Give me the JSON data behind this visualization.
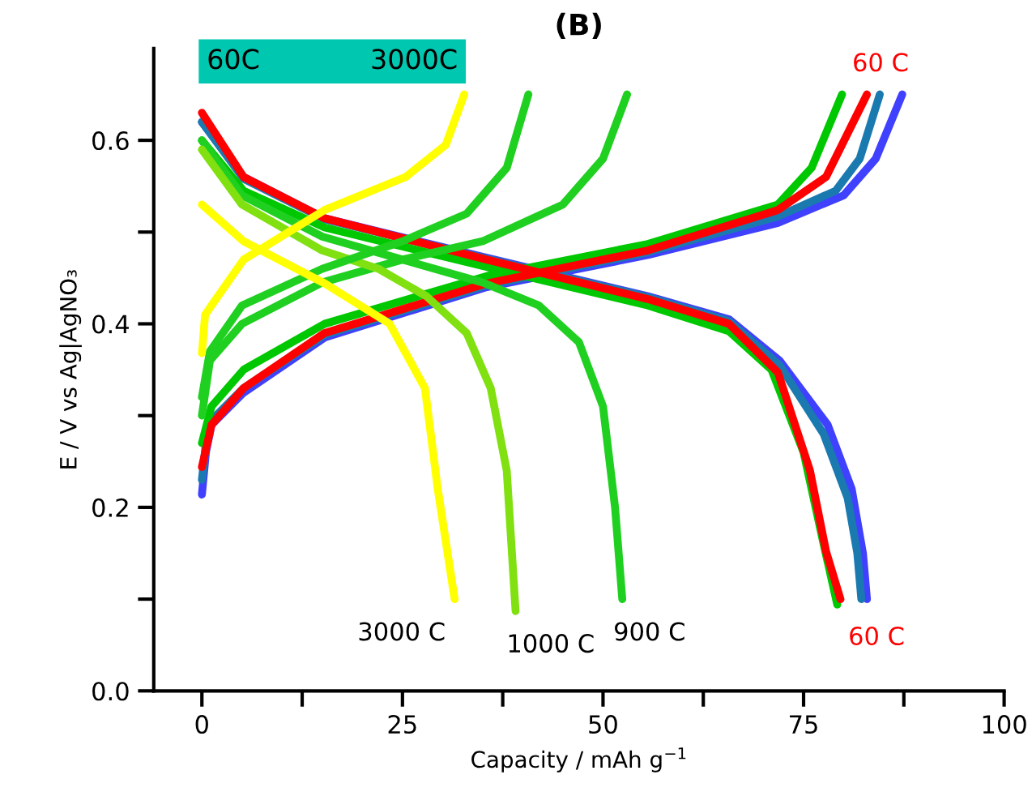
{
  "chart_data": {
    "type": "line",
    "title": "(B)",
    "xlabel": "Capacity / mAh g$^{−1}$",
    "ylabel": "E / V vs Ag|AgNO₃",
    "xlim": [
      -6,
      100
    ],
    "ylim": [
      0,
      0.7
    ],
    "xticks": [
      0,
      {
        "value": 12.5,
        "label": null
      },
      25,
      {
        "value": 37.5,
        "label": null
      },
      50,
      {
        "value": 62.5,
        "label": null
      },
      75,
      {
        "value": 87.5,
        "label": null
      },
      100
    ],
    "yticks": [
      {
        "value": 0.0,
        "label": "0.0"
      },
      {
        "value": 0.1,
        "label": null
      },
      0.2,
      {
        "value": 0.3,
        "label": null
      },
      0.4,
      {
        "value": 0.5,
        "label": null
      },
      0.6
    ],
    "grid": false,
    "legend": false,
    "line_style": "solid",
    "marker": "none",
    "series": [
      {
        "color": "#4040ff",
        "x": [
          0,
          5.2,
          15.3,
          35.5,
          55.6,
          65.7,
          72,
          78,
          81,
          82.4,
          82.9
        ],
        "values": [
          0.62,
          0.56,
          0.515,
          0.472,
          0.43,
          0.405,
          0.36,
          0.29,
          0.22,
          0.15,
          0.1
        ]
      },
      {
        "color": "#4040ff",
        "x": [
          0,
          0.5,
          1.2,
          5.2,
          15.3,
          35.5,
          55.6,
          71.8,
          80,
          84,
          87.3
        ],
        "values": [
          0.214,
          0.26,
          0.29,
          0.325,
          0.385,
          0.44,
          0.475,
          0.51,
          0.54,
          0.58,
          0.65
        ]
      },
      {
        "color": "#1a7ab0",
        "x": [
          0,
          5.2,
          15.3,
          35.5,
          55.6,
          65.7,
          72,
          77.5,
          80.5,
          81.7,
          82.2
        ],
        "values": [
          0.62,
          0.558,
          0.514,
          0.471,
          0.429,
          0.403,
          0.355,
          0.28,
          0.21,
          0.15,
          0.1
        ]
      },
      {
        "color": "#1a7ab0",
        "x": [
          0,
          0.5,
          1.2,
          5.2,
          15.3,
          35.5,
          55.6,
          71.8,
          79,
          82,
          84.5
        ],
        "values": [
          0.23,
          0.27,
          0.295,
          0.33,
          0.388,
          0.442,
          0.478,
          0.517,
          0.545,
          0.58,
          0.65
        ]
      },
      {
        "color": "#00c800",
        "x": [
          0,
          5.2,
          15.3,
          35.5,
          55.6,
          65.7,
          71,
          75,
          77.5,
          79.2
        ],
        "values": [
          0.6,
          0.545,
          0.505,
          0.462,
          0.42,
          0.392,
          0.35,
          0.26,
          0.16,
          0.094
        ]
      },
      {
        "color": "#00c800",
        "x": [
          0,
          1.2,
          5.2,
          15.3,
          35.5,
          55.6,
          71.8,
          76,
          79.8
        ],
        "values": [
          0.27,
          0.31,
          0.35,
          0.4,
          0.452,
          0.487,
          0.53,
          0.57,
          0.65
        ]
      },
      {
        "name": "60 C",
        "color": "#ff0000",
        "x": [
          0,
          5.2,
          15.3,
          35.5,
          55.6,
          65.7,
          71.8,
          75.8,
          77.8,
          79.6
        ],
        "values": [
          0.63,
          0.56,
          0.515,
          0.47,
          0.427,
          0.4,
          0.347,
          0.24,
          0.152,
          0.1
        ]
      },
      {
        "name": "60 C",
        "color": "#ff0000",
        "x": [
          0,
          1.2,
          5.2,
          15.3,
          35.5,
          55.6,
          71.8,
          77.8,
          82.9
        ],
        "values": [
          0.244,
          0.29,
          0.33,
          0.39,
          0.444,
          0.48,
          0.524,
          0.56,
          0.65
        ]
      },
      {
        "color": "#20d020",
        "x": [
          0,
          5,
          15,
          25,
          35,
          42,
          47,
          50,
          51.5,
          52.4
        ],
        "values": [
          0.6,
          0.54,
          0.495,
          0.47,
          0.445,
          0.42,
          0.38,
          0.31,
          0.2,
          0.1
        ]
      },
      {
        "color": "#20d020",
        "x": [
          0,
          1,
          5,
          15,
          25,
          35,
          45,
          50,
          53
        ],
        "values": [
          0.3,
          0.36,
          0.4,
          0.445,
          0.47,
          0.49,
          0.53,
          0.58,
          0.65
        ]
      },
      {
        "color": "#80e010",
        "x": [
          0,
          5,
          15,
          22,
          28,
          33,
          36,
          38,
          39.1
        ],
        "values": [
          0.59,
          0.53,
          0.48,
          0.46,
          0.43,
          0.39,
          0.33,
          0.24,
          0.087
        ]
      },
      {
        "color": "#20d020",
        "x": [
          0,
          1,
          5,
          15,
          25,
          33,
          38,
          40.7
        ],
        "values": [
          0.32,
          0.37,
          0.42,
          0.46,
          0.49,
          0.52,
          0.57,
          0.65
        ]
      },
      {
        "color": "#ffff00",
        "x": [
          0,
          5.2,
          15.3,
          23.4,
          27.8,
          29.4,
          31.5
        ],
        "values": [
          0.53,
          0.49,
          0.444,
          0.4,
          0.33,
          0.22,
          0.1
        ]
      },
      {
        "color": "#ffff00",
        "x": [
          0,
          0.4,
          5.2,
          15.3,
          25.4,
          30.4,
          32.7
        ],
        "values": [
          0.368,
          0.41,
          0.47,
          0.524,
          0.56,
          0.595,
          0.65
        ]
      }
    ],
    "annotations": [
      "60C",
      "3000C",
      {
        "text": "3000 C",
        "x": 31.5,
        "y": 0.1
      },
      {
        "text": "1000 C",
        "x": 39.1,
        "y": 0.087
      },
      {
        "text": "900 C",
        "x": 52.4,
        "y": 0.1
      }
    ]
  }
}
